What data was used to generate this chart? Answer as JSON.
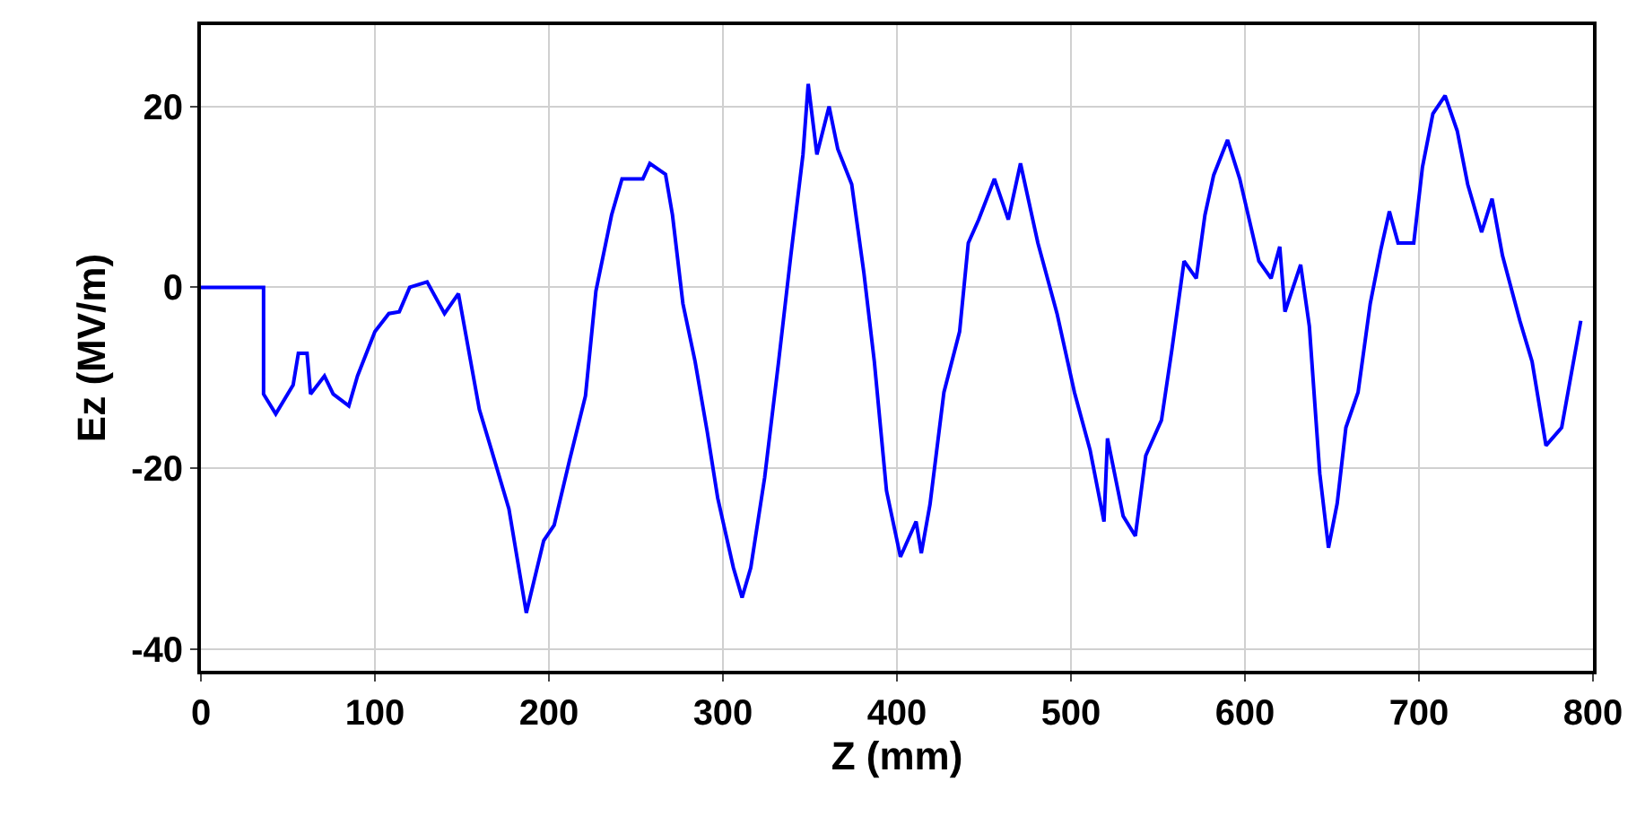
{
  "chart_data": {
    "type": "line",
    "xlabel": "Z (mm)",
    "ylabel": "Ez (MV/m)",
    "xlim": [
      0,
      800
    ],
    "ylim": [
      -42.4,
      29
    ],
    "xticks": [
      0,
      100,
      200,
      300,
      400,
      500,
      600,
      700,
      800
    ],
    "yticks": [
      -40,
      -20,
      0,
      20
    ],
    "grid": true,
    "marker": "none",
    "line_style": "solid",
    "x": [
      0,
      36,
      36,
      43,
      53,
      56,
      61,
      63,
      71,
      76,
      85,
      90,
      100,
      108,
      114,
      120,
      130,
      140,
      148,
      160,
      167,
      177,
      187,
      197,
      203,
      212,
      221,
      227,
      236,
      242,
      254,
      258,
      267,
      271,
      277,
      284,
      291,
      297,
      306,
      311,
      316,
      324,
      332,
      339,
      346,
      349,
      354,
      361,
      366,
      374,
      381,
      387,
      394,
      402,
      411,
      414,
      419,
      427,
      436,
      441,
      447,
      456,
      464,
      471,
      481,
      492,
      502,
      511,
      519,
      521,
      530,
      537,
      543,
      552,
      558,
      565,
      572,
      577,
      582,
      590,
      597,
      608,
      615,
      620,
      623,
      632,
      637,
      643,
      648,
      653,
      658,
      665,
      672,
      678,
      683,
      688,
      697,
      702,
      708,
      715,
      722,
      728,
      736,
      742,
      748,
      758,
      765,
      773,
      782,
      793
    ],
    "series": [
      {
        "color": "#0000ff",
        "values": [
          0,
          0,
          -11.8,
          -14,
          -10.8,
          -7.3,
          -7.3,
          -11.8,
          -9.8,
          -11.8,
          -13.1,
          -9.8,
          -4.9,
          -2.9,
          -2.7,
          0,
          0.6,
          -2.9,
          -0.7,
          -13.5,
          -18,
          -24.5,
          -36,
          -28,
          -26.3,
          -19,
          -12,
          -0.4,
          8,
          12,
          12,
          13.7,
          12.5,
          8,
          -1.8,
          -8.2,
          -16,
          -23.3,
          -31,
          -34.3,
          -31,
          -21,
          -8.2,
          3.5,
          14.7,
          22.5,
          14.7,
          20,
          15.3,
          11.4,
          1.6,
          -8.2,
          -22.5,
          -29.8,
          -25.9,
          -29.4,
          -24,
          -11.6,
          -4.9,
          4.9,
          7.5,
          12,
          7.5,
          13.7,
          4.9,
          -2.9,
          -11.6,
          -18,
          -25.9,
          -16.7,
          -25.3,
          -27.5,
          -18.6,
          -14.7,
          -6.9,
          2.9,
          1,
          8,
          12.4,
          16.3,
          12,
          2.9,
          1,
          4.5,
          -2.7,
          2.5,
          -4.3,
          -20.6,
          -28.8,
          -23.9,
          -15.5,
          -11.6,
          -1.8,
          4.1,
          8.4,
          4.9,
          4.9,
          13.3,
          19.2,
          21.2,
          17.3,
          11.4,
          6.1,
          9.8,
          3.5,
          -3.7,
          -8.2,
          -17.5,
          -15.5,
          -3.7
        ]
      }
    ]
  }
}
